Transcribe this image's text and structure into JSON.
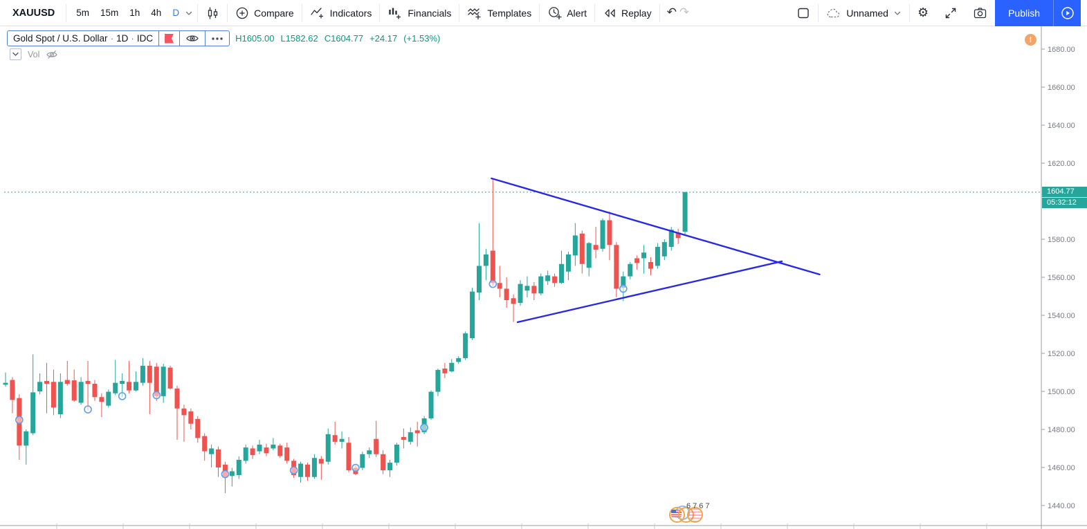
{
  "toolbar": {
    "symbol": "XAUUSD",
    "intervals": [
      "5m",
      "15m",
      "1h",
      "4h",
      "D"
    ],
    "active_interval": "D",
    "compare_label": "Compare",
    "indicators_label": "Indicators",
    "financials_label": "Financials",
    "templates_label": "Templates",
    "alert_label": "Alert",
    "replay_label": "Replay",
    "undo_glyph": "↶",
    "redo_glyph": "↷",
    "gear_glyph": "⚙",
    "layout_name": "Unnamed",
    "publish_label": "Publish"
  },
  "legend": {
    "symbol_title": "Gold Spot / U.S. Dollar",
    "separator": "·",
    "interval": "1D",
    "exchange": "IDC",
    "ohlc": {
      "high_label": "H",
      "high": "1605.00",
      "low_label": "L",
      "low": "1582.62",
      "close_label": "C",
      "close": "1604.77",
      "change": "+24.17",
      "change_pct": "(+1.53%)"
    },
    "indicator_row": {
      "name": "Vol"
    }
  },
  "price_axis": {
    "ticks": [
      "1680.00",
      "1660.00",
      "1640.00",
      "1620.00",
      "1580.00",
      "1560.00",
      "1540.00",
      "1520.00",
      "1500.00",
      "1480.00",
      "1460.00",
      "1440.00"
    ],
    "last_price": "1604.77",
    "countdown": "05:32:12"
  },
  "warning_badge": {
    "text": "!"
  },
  "watermark": {
    "digits": "6767"
  },
  "colors": {
    "up": "#26a69a",
    "down": "#ef5350",
    "trendline": "#2828e6",
    "accent_blue": "#2962ff",
    "active_interval_blue": "#2f7df6",
    "axis_text": "#787b86",
    "marker_blue": "#5d9cf5",
    "ohlc_text": "#089981",
    "last_price_bg": "#26a69a"
  },
  "chart_data": {
    "type": "candlestick",
    "symbol": "XAUUSD",
    "title": "Gold Spot / U.S. Dollar",
    "timeframe": "1D",
    "exchange": "IDC",
    "ylim": [
      1437,
      1693
    ],
    "grid": false,
    "current_price": 1604.77,
    "prev_close": 1580.6,
    "change": 24.17,
    "change_pct": 1.53,
    "axis_tick_values": [
      1680,
      1660,
      1640,
      1620,
      1580,
      1560,
      1540,
      1520,
      1500,
      1480,
      1460,
      1440
    ],
    "candles": [
      [
        1503.5,
        1510,
        1502.5,
        1504.5
      ],
      [
        1506,
        1507.5,
        1488.5,
        1495.5
      ],
      [
        1496.5,
        1498.5,
        1464,
        1471.5
      ],
      [
        1471.5,
        1480,
        1461.5,
        1479
      ],
      [
        1478,
        1519.5,
        1477,
        1499.5
      ],
      [
        1500,
        1509.5,
        1498.5,
        1505
      ],
      [
        1505.5,
        1515,
        1488.5,
        1504
      ],
      [
        1505,
        1511.5,
        1487.5,
        1491.5
      ],
      [
        1488,
        1509.5,
        1486,
        1505
      ],
      [
        1506,
        1516,
        1503,
        1504
      ],
      [
        1505.8,
        1511.5,
        1494.5,
        1495.2
      ],
      [
        1494,
        1507.5,
        1493,
        1505
      ],
      [
        1505.5,
        1516,
        1490,
        1504
      ],
      [
        1504,
        1506,
        1495,
        1497
      ],
      [
        1497,
        1499,
        1486.5,
        1494.5
      ],
      [
        1492.5,
        1501,
        1491.5,
        1499.8
      ],
      [
        1499,
        1516.5,
        1498,
        1504.5
      ],
      [
        1504,
        1509.5,
        1497,
        1505.5
      ],
      [
        1505,
        1516,
        1499,
        1500.5
      ],
      [
        1500.5,
        1510.5,
        1500,
        1505
      ],
      [
        1504.5,
        1517.5,
        1503,
        1513.5
      ],
      [
        1513.5,
        1516,
        1488,
        1504.5
      ],
      [
        1513,
        1515,
        1495,
        1497.5
      ],
      [
        1497.5,
        1514.5,
        1494,
        1513
      ],
      [
        1512.5,
        1513.5,
        1501,
        1501.5
      ],
      [
        1501.5,
        1503,
        1474.5,
        1491
      ],
      [
        1491,
        1493,
        1473.5,
        1487.5
      ],
      [
        1489.5,
        1491,
        1480,
        1483
      ],
      [
        1485.5,
        1487,
        1473,
        1475.5
      ],
      [
        1476.5,
        1478,
        1463.5,
        1468.5
      ],
      [
        1467,
        1472,
        1460,
        1470
      ],
      [
        1469.5,
        1471,
        1455,
        1460
      ],
      [
        1461.5,
        1463,
        1446.5,
        1455
      ],
      [
        1455.5,
        1459.8,
        1450,
        1458
      ],
      [
        1456,
        1465.8,
        1454,
        1464
      ],
      [
        1463.5,
        1472,
        1462,
        1470.5
      ],
      [
        1470,
        1471.5,
        1464.5,
        1466.5
      ],
      [
        1468.5,
        1474.5,
        1467,
        1472
      ],
      [
        1470.5,
        1472.5,
        1466,
        1467.5
      ],
      [
        1470,
        1475.5,
        1469,
        1472
      ],
      [
        1471.5,
        1472.5,
        1465,
        1466
      ],
      [
        1470.5,
        1473,
        1462,
        1463.5
      ],
      [
        1463.5,
        1464.5,
        1454.5,
        1456
      ],
      [
        1455,
        1463,
        1452,
        1462
      ],
      [
        1461.5,
        1462.5,
        1453,
        1455
      ],
      [
        1455,
        1467,
        1454,
        1465
      ],
      [
        1464.5,
        1466,
        1453.5,
        1462
      ],
      [
        1463,
        1480.5,
        1461.5,
        1477.5
      ],
      [
        1477,
        1484,
        1472,
        1473.5
      ],
      [
        1473.5,
        1479,
        1470,
        1475
      ],
      [
        1473,
        1476,
        1457.5,
        1458.5
      ],
      [
        1459.8,
        1461,
        1456,
        1456.5
      ],
      [
        1459.8,
        1468.3,
        1458.5,
        1467
      ],
      [
        1467,
        1470.5,
        1465,
        1469
      ],
      [
        1475,
        1484.5,
        1465.5,
        1467
      ],
      [
        1467,
        1469,
        1456.5,
        1458.5
      ],
      [
        1458.5,
        1464,
        1455,
        1462.5
      ],
      [
        1462.5,
        1473,
        1461,
        1472
      ],
      [
        1476,
        1480.5,
        1470,
        1474.5
      ],
      [
        1473.5,
        1481,
        1472,
        1478.5
      ],
      [
        1479.5,
        1484,
        1471,
        1478
      ],
      [
        1478.5,
        1487,
        1477.5,
        1485.8
      ],
      [
        1485.8,
        1500.5,
        1485,
        1499.8
      ],
      [
        1499.8,
        1512,
        1497.5,
        1511.3
      ],
      [
        1512,
        1515,
        1507,
        1509.5
      ],
      [
        1510.5,
        1517,
        1510,
        1515
      ],
      [
        1515.5,
        1518.5,
        1514.5,
        1517.5
      ],
      [
        1517.5,
        1531.5,
        1516.5,
        1530.5
      ],
      [
        1528,
        1554.5,
        1527,
        1552.5
      ],
      [
        1552,
        1588.5,
        1548,
        1566
      ],
      [
        1566,
        1575,
        1558.5,
        1572
      ],
      [
        1574,
        1612,
        1555.5,
        1557
      ],
      [
        1557,
        1566,
        1549.5,
        1554
      ],
      [
        1554,
        1560,
        1544,
        1548
      ],
      [
        1549,
        1551,
        1536.5,
        1546
      ],
      [
        1546.5,
        1558.5,
        1545,
        1556.5
      ],
      [
        1553,
        1560.5,
        1549.5,
        1555.5
      ],
      [
        1555.5,
        1557.5,
        1548,
        1551.5
      ],
      [
        1551.5,
        1562,
        1550.5,
        1560.5
      ],
      [
        1558,
        1563.5,
        1556,
        1561
      ],
      [
        1560.5,
        1562,
        1555,
        1557
      ],
      [
        1557,
        1574,
        1556.5,
        1567
      ],
      [
        1563,
        1573.5,
        1558.5,
        1572
      ],
      [
        1571.5,
        1588.5,
        1566,
        1582
      ],
      [
        1583,
        1584.5,
        1562,
        1567
      ],
      [
        1565,
        1578.5,
        1560.5,
        1578
      ],
      [
        1577,
        1586.5,
        1570,
        1574.5
      ],
      [
        1575,
        1591,
        1573.5,
        1590
      ],
      [
        1590,
        1594.5,
        1569,
        1577
      ],
      [
        1577,
        1578.5,
        1549.5,
        1554
      ],
      [
        1554.5,
        1563,
        1547.5,
        1560.5
      ],
      [
        1560.5,
        1568,
        1559,
        1567
      ],
      [
        1570,
        1571.5,
        1564,
        1567.5
      ],
      [
        1570,
        1577,
        1562,
        1573
      ],
      [
        1568,
        1570.5,
        1561,
        1564.5
      ],
      [
        1566,
        1578,
        1564.5,
        1576
      ],
      [
        1571,
        1580,
        1569,
        1578.5
      ],
      [
        1576,
        1586.5,
        1574,
        1585
      ],
      [
        1583.5,
        1585.5,
        1577.5,
        1580.6
      ],
      [
        1584,
        1605,
        1582.62,
        1604.77
      ]
    ],
    "markers": [
      {
        "index": 2,
        "price": 1485
      },
      {
        "index": 12,
        "price": 1490.5
      },
      {
        "index": 17,
        "price": 1497.5
      },
      {
        "index": 22,
        "price": 1498
      },
      {
        "index": 32,
        "price": 1456.5
      },
      {
        "index": 42,
        "price": 1458.5
      },
      {
        "index": 51,
        "price": 1459.8
      },
      {
        "index": 61,
        "price": 1481
      },
      {
        "index": 71,
        "price": 1556.5
      },
      {
        "index": 90,
        "price": 1554
      }
    ],
    "trendlines": [
      {
        "name": "triangle-upper",
        "from": {
          "index": 70.8,
          "price": 1612
        },
        "to": {
          "index": 118.6,
          "price": 1561.5
        }
      },
      {
        "name": "triangle-lower",
        "from": {
          "index": 74.6,
          "price": 1536.4
        },
        "to": {
          "index": 113.1,
          "price": 1568.4
        }
      }
    ]
  }
}
